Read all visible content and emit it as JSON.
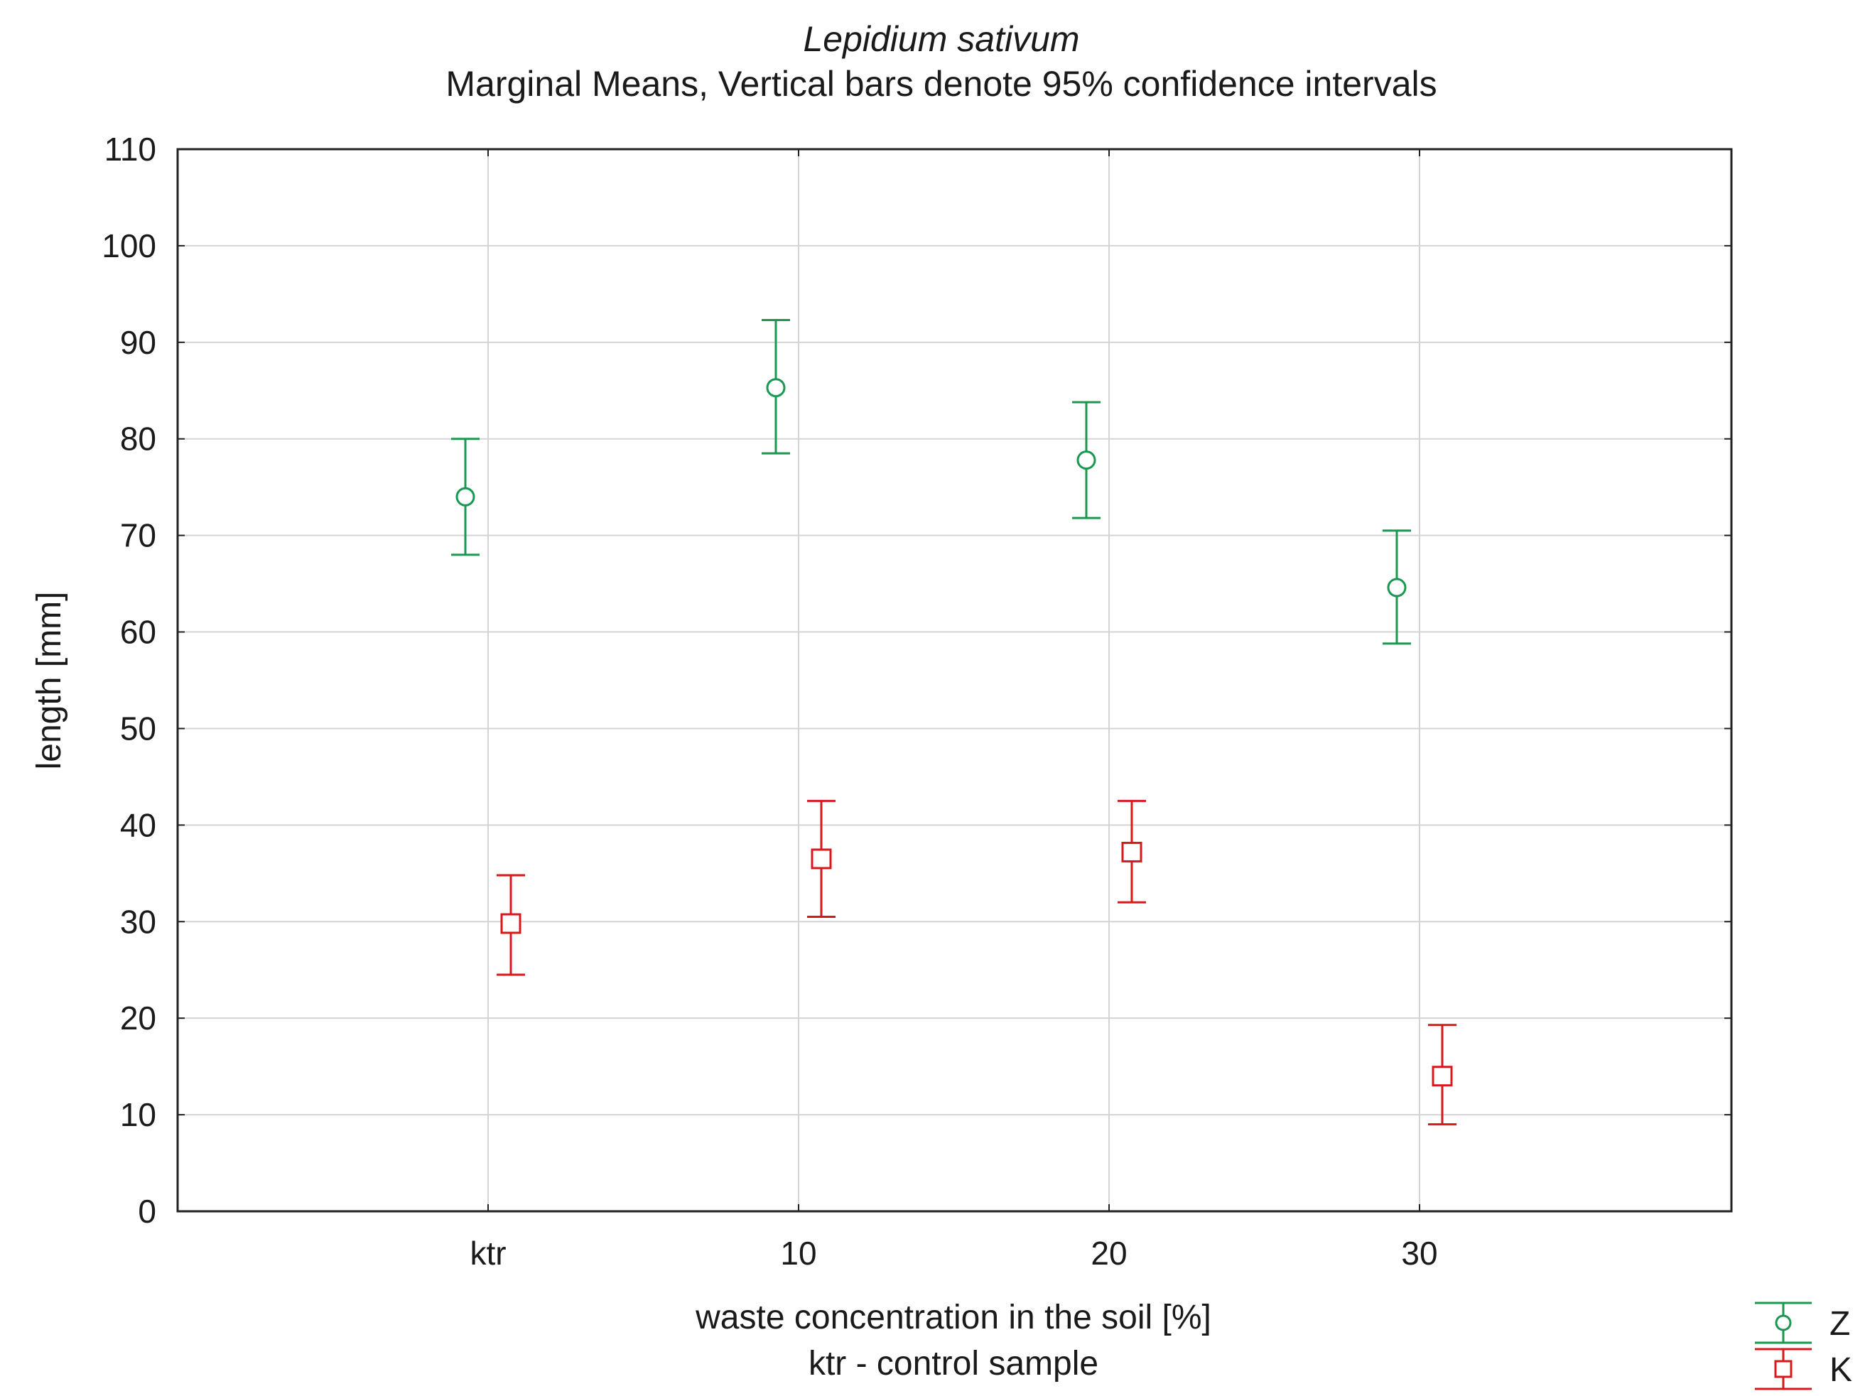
{
  "chart_data": {
    "type": "scatter",
    "title": "Lepidium sativum",
    "subtitle": "Marginal Means, Vertical bars denote 95% confidence intervals",
    "xlabel": "waste concentration in the soil [%]",
    "xlabel_note": "ktr - control sample",
    "ylabel": "length [mm]",
    "categories": [
      "ktr",
      "10",
      "20",
      "30"
    ],
    "ylim": [
      0,
      110
    ],
    "yticks": [
      0,
      10,
      20,
      30,
      40,
      50,
      60,
      70,
      80,
      90,
      100,
      110
    ],
    "grid": true,
    "legend_position": "bottom-right",
    "series": [
      {
        "name": "Z",
        "color": "#1a9850",
        "marker": "circle",
        "values": [
          74,
          85.3,
          77.8,
          64.6
        ],
        "lower": [
          68,
          78.5,
          71.8,
          58.8
        ],
        "upper": [
          80,
          92.3,
          83.8,
          70.5
        ]
      },
      {
        "name": "K",
        "color": "#d7191c",
        "marker": "square",
        "values": [
          29.8,
          36.5,
          37.2,
          14
        ],
        "lower": [
          24.5,
          30.5,
          32,
          9
        ],
        "upper": [
          34.8,
          42.5,
          42.5,
          19.3
        ]
      }
    ]
  }
}
